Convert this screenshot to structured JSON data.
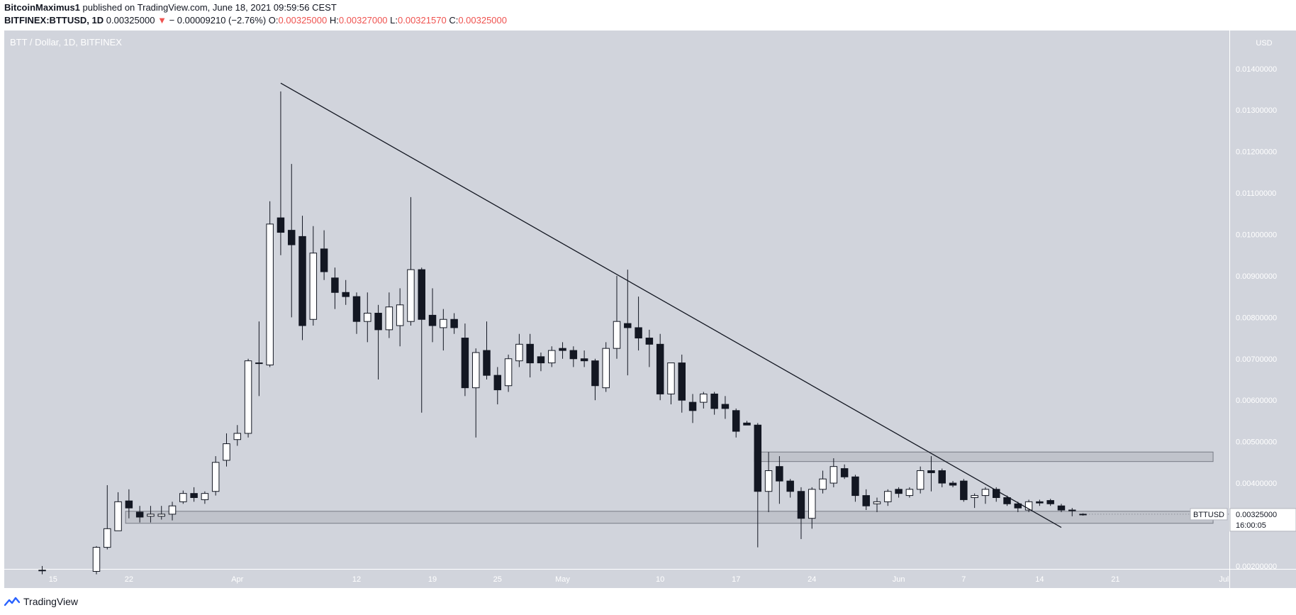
{
  "header": {
    "author": "BitcoinMaximus1",
    "published_text": "published on TradingView.com, June 18, 2021 09:59:56 CEST",
    "symbol": "BITFINEX:BTTUSD, 1D",
    "last": "0.00325000",
    "change": "− 0.00009210 (−2.76%)",
    "arrow": "▼",
    "o_label": "O:",
    "o_val": "0.00325000",
    "h_label": "H:",
    "h_val": "0.00327000",
    "l_label": "L:",
    "l_val": "0.00321570",
    "c_label": "C:",
    "c_val": "0.00325000"
  },
  "footer": {
    "brand": "TradingView",
    "logo_icon": "tradingview-logo-icon"
  },
  "colors": {
    "plot_bg": "#d1d4dc",
    "up_fill": "#ffffff",
    "down_fill": "#131722",
    "wick": "#131722",
    "trendline": "#131722",
    "zone_fill": "rgba(178,181,190,0.55)",
    "zone_stroke": "#787b86",
    "axis_text": "#ffffff",
    "chart_title": "#ffffff"
  },
  "chart_data": {
    "type": "candlestick",
    "title": "BTT / Dollar, 1D, BITFINEX",
    "currency": "USD",
    "price_tag": {
      "label": "BTTUSD",
      "value": "0.00325000",
      "countdown": "16:00:05"
    },
    "ylim": [
      0.00193,
      0.01492
    ],
    "y_ticks": [
      "0.01400000",
      "0.01300000",
      "0.01200000",
      "0.01100000",
      "0.01000000",
      "0.00900000",
      "0.00800000",
      "0.00700000",
      "0.00600000",
      "0.00500000",
      "0.00400000",
      "0.00200000"
    ],
    "y_tick_values": [
      0.014,
      0.013,
      0.012,
      0.011,
      0.01,
      0.009,
      0.008,
      0.007,
      0.006,
      0.005,
      0.004,
      0.002
    ],
    "x_start": "2021-03-11",
    "x_end": "2021-07-02",
    "x_ticks": [
      {
        "label": "15",
        "date": "2021-03-15"
      },
      {
        "label": "22",
        "date": "2021-03-22"
      },
      {
        "label": "Apr",
        "date": "2021-04-01"
      },
      {
        "label": "12",
        "date": "2021-04-12"
      },
      {
        "label": "19",
        "date": "2021-04-19"
      },
      {
        "label": "25",
        "date": "2021-04-25"
      },
      {
        "label": "May",
        "date": "2021-05-01"
      },
      {
        "label": "10",
        "date": "2021-05-10"
      },
      {
        "label": "17",
        "date": "2021-05-17"
      },
      {
        "label": "24",
        "date": "2021-05-24"
      },
      {
        "label": "Jun",
        "date": "2021-06-01"
      },
      {
        "label": "7",
        "date": "2021-06-07"
      },
      {
        "label": "14",
        "date": "2021-06-14"
      },
      {
        "label": "21",
        "date": "2021-06-21"
      },
      {
        "label": "Jul",
        "date": "2021-07-01"
      }
    ],
    "candles": [
      {
        "d": "2021-03-14",
        "o": 0.0019,
        "h": 0.002,
        "l": 0.0018,
        "c": 0.0019
      },
      {
        "d": "2021-03-19",
        "o": 0.00187,
        "h": 0.00248,
        "l": 0.0018,
        "c": 0.00245
      },
      {
        "d": "2021-03-20",
        "o": 0.00245,
        "h": 0.00395,
        "l": 0.0024,
        "c": 0.0029
      },
      {
        "d": "2021-03-21",
        "o": 0.00285,
        "h": 0.00378,
        "l": 0.00285,
        "c": 0.00355
      },
      {
        "d": "2021-03-22",
        "o": 0.00357,
        "h": 0.00385,
        "l": 0.00315,
        "c": 0.0034
      },
      {
        "d": "2021-03-23",
        "o": 0.0033,
        "h": 0.00345,
        "l": 0.00305,
        "c": 0.00318
      },
      {
        "d": "2021-03-24",
        "o": 0.0032,
        "h": 0.00345,
        "l": 0.00305,
        "c": 0.00325
      },
      {
        "d": "2021-03-25",
        "o": 0.0032,
        "h": 0.00345,
        "l": 0.00312,
        "c": 0.00325
      },
      {
        "d": "2021-03-26",
        "o": 0.00325,
        "h": 0.00355,
        "l": 0.0031,
        "c": 0.00345
      },
      {
        "d": "2021-03-27",
        "o": 0.00355,
        "h": 0.00382,
        "l": 0.0035,
        "c": 0.00375
      },
      {
        "d": "2021-03-28",
        "o": 0.00375,
        "h": 0.0039,
        "l": 0.00355,
        "c": 0.00365
      },
      {
        "d": "2021-03-29",
        "o": 0.0036,
        "h": 0.0038,
        "l": 0.0035,
        "c": 0.00375
      },
      {
        "d": "2021-03-30",
        "o": 0.0038,
        "h": 0.00465,
        "l": 0.0037,
        "c": 0.0045
      },
      {
        "d": "2021-03-31",
        "o": 0.00455,
        "h": 0.0052,
        "l": 0.0044,
        "c": 0.00495
      },
      {
        "d": "2021-04-01",
        "o": 0.00505,
        "h": 0.0054,
        "l": 0.0049,
        "c": 0.0052
      },
      {
        "d": "2021-04-02",
        "o": 0.0052,
        "h": 0.007,
        "l": 0.0051,
        "c": 0.00695
      },
      {
        "d": "2021-04-03",
        "o": 0.0069,
        "h": 0.0079,
        "l": 0.0061,
        "c": 0.0069
      },
      {
        "d": "2021-04-04",
        "o": 0.00685,
        "h": 0.0108,
        "l": 0.0068,
        "c": 0.01025
      },
      {
        "d": "2021-04-05",
        "o": 0.0104,
        "h": 0.01345,
        "l": 0.0095,
        "c": 0.01005
      },
      {
        "d": "2021-04-06",
        "o": 0.0101,
        "h": 0.0117,
        "l": 0.008,
        "c": 0.00975
      },
      {
        "d": "2021-04-07",
        "o": 0.00995,
        "h": 0.01045,
        "l": 0.00745,
        "c": 0.0078
      },
      {
        "d": "2021-04-08",
        "o": 0.00795,
        "h": 0.0102,
        "l": 0.0078,
        "c": 0.00955
      },
      {
        "d": "2021-04-09",
        "o": 0.00965,
        "h": 0.0101,
        "l": 0.0089,
        "c": 0.0091
      },
      {
        "d": "2021-04-10",
        "o": 0.00895,
        "h": 0.0092,
        "l": 0.0082,
        "c": 0.0086
      },
      {
        "d": "2021-04-11",
        "o": 0.0086,
        "h": 0.0089,
        "l": 0.0083,
        "c": 0.0085
      },
      {
        "d": "2021-04-12",
        "o": 0.0085,
        "h": 0.0086,
        "l": 0.0076,
        "c": 0.0079
      },
      {
        "d": "2021-04-13",
        "o": 0.0079,
        "h": 0.0086,
        "l": 0.0074,
        "c": 0.0081
      },
      {
        "d": "2021-04-14",
        "o": 0.0081,
        "h": 0.0083,
        "l": 0.0065,
        "c": 0.0077
      },
      {
        "d": "2021-04-15",
        "o": 0.0077,
        "h": 0.0086,
        "l": 0.0075,
        "c": 0.00825
      },
      {
        "d": "2021-04-16",
        "o": 0.0078,
        "h": 0.0087,
        "l": 0.0073,
        "c": 0.0083
      },
      {
        "d": "2021-04-17",
        "o": 0.0079,
        "h": 0.0109,
        "l": 0.0078,
        "c": 0.00915
      },
      {
        "d": "2021-04-18",
        "o": 0.00915,
        "h": 0.0092,
        "l": 0.0057,
        "c": 0.00795
      },
      {
        "d": "2021-04-19",
        "o": 0.00805,
        "h": 0.0087,
        "l": 0.0074,
        "c": 0.0078
      },
      {
        "d": "2021-04-20",
        "o": 0.00775,
        "h": 0.0082,
        "l": 0.0072,
        "c": 0.00795
      },
      {
        "d": "2021-04-21",
        "o": 0.00795,
        "h": 0.0081,
        "l": 0.0076,
        "c": 0.00775
      },
      {
        "d": "2021-04-22",
        "o": 0.0075,
        "h": 0.00785,
        "l": 0.0061,
        "c": 0.0063
      },
      {
        "d": "2021-04-23",
        "o": 0.0063,
        "h": 0.00725,
        "l": 0.0051,
        "c": 0.00715
      },
      {
        "d": "2021-04-24",
        "o": 0.0072,
        "h": 0.0079,
        "l": 0.0065,
        "c": 0.0066
      },
      {
        "d": "2021-04-25",
        "o": 0.0066,
        "h": 0.0068,
        "l": 0.0059,
        "c": 0.00625
      },
      {
        "d": "2021-04-26",
        "o": 0.00635,
        "h": 0.0071,
        "l": 0.0062,
        "c": 0.007
      },
      {
        "d": "2021-04-27",
        "o": 0.00695,
        "h": 0.0076,
        "l": 0.0068,
        "c": 0.00735
      },
      {
        "d": "2021-04-28",
        "o": 0.00735,
        "h": 0.0076,
        "l": 0.00655,
        "c": 0.0069
      },
      {
        "d": "2021-04-29",
        "o": 0.00705,
        "h": 0.00715,
        "l": 0.0067,
        "c": 0.0069
      },
      {
        "d": "2021-04-30",
        "o": 0.0069,
        "h": 0.0073,
        "l": 0.0068,
        "c": 0.0072
      },
      {
        "d": "2021-05-01",
        "o": 0.00725,
        "h": 0.0074,
        "l": 0.007,
        "c": 0.0072
      },
      {
        "d": "2021-05-02",
        "o": 0.0072,
        "h": 0.0073,
        "l": 0.0068,
        "c": 0.007
      },
      {
        "d": "2021-05-03",
        "o": 0.007,
        "h": 0.0072,
        "l": 0.0068,
        "c": 0.00695
      },
      {
        "d": "2021-05-04",
        "o": 0.00695,
        "h": 0.007,
        "l": 0.006,
        "c": 0.00635
      },
      {
        "d": "2021-05-05",
        "o": 0.0063,
        "h": 0.0074,
        "l": 0.0062,
        "c": 0.00725
      },
      {
        "d": "2021-05-06",
        "o": 0.00725,
        "h": 0.009,
        "l": 0.007,
        "c": 0.0079
      },
      {
        "d": "2021-05-07",
        "o": 0.00785,
        "h": 0.00915,
        "l": 0.0066,
        "c": 0.00775
      },
      {
        "d": "2021-05-08",
        "o": 0.00775,
        "h": 0.0085,
        "l": 0.0072,
        "c": 0.0075
      },
      {
        "d": "2021-05-09",
        "o": 0.0075,
        "h": 0.0077,
        "l": 0.0068,
        "c": 0.00735
      },
      {
        "d": "2021-05-10",
        "o": 0.00735,
        "h": 0.0076,
        "l": 0.006,
        "c": 0.00615
      },
      {
        "d": "2021-05-11",
        "o": 0.00615,
        "h": 0.0069,
        "l": 0.0059,
        "c": 0.0069
      },
      {
        "d": "2021-05-12",
        "o": 0.0069,
        "h": 0.0071,
        "l": 0.0057,
        "c": 0.006
      },
      {
        "d": "2021-05-13",
        "o": 0.00595,
        "h": 0.00615,
        "l": 0.00545,
        "c": 0.00575
      },
      {
        "d": "2021-05-14",
        "o": 0.00595,
        "h": 0.0062,
        "l": 0.0058,
        "c": 0.00615
      },
      {
        "d": "2021-05-15",
        "o": 0.00615,
        "h": 0.0062,
        "l": 0.00565,
        "c": 0.0058
      },
      {
        "d": "2021-05-16",
        "o": 0.0059,
        "h": 0.0061,
        "l": 0.00555,
        "c": 0.0058
      },
      {
        "d": "2021-05-17",
        "o": 0.00575,
        "h": 0.0058,
        "l": 0.0051,
        "c": 0.00525
      },
      {
        "d": "2021-05-18",
        "o": 0.00545,
        "h": 0.0055,
        "l": 0.0054,
        "c": 0.0054
      },
      {
        "d": "2021-05-19",
        "o": 0.0054,
        "h": 0.00545,
        "l": 0.00245,
        "c": 0.0038
      },
      {
        "d": "2021-05-20",
        "o": 0.0038,
        "h": 0.00475,
        "l": 0.0033,
        "c": 0.0043
      },
      {
        "d": "2021-05-21",
        "o": 0.0044,
        "h": 0.00465,
        "l": 0.0035,
        "c": 0.00405
      },
      {
        "d": "2021-05-22",
        "o": 0.00405,
        "h": 0.0041,
        "l": 0.00365,
        "c": 0.0038
      },
      {
        "d": "2021-05-23",
        "o": 0.0038,
        "h": 0.0039,
        "l": 0.00265,
        "c": 0.00315
      },
      {
        "d": "2021-05-24",
        "o": 0.00315,
        "h": 0.0039,
        "l": 0.0029,
        "c": 0.00385
      },
      {
        "d": "2021-05-25",
        "o": 0.00385,
        "h": 0.0043,
        "l": 0.00375,
        "c": 0.0041
      },
      {
        "d": "2021-05-26",
        "o": 0.004,
        "h": 0.0046,
        "l": 0.0039,
        "c": 0.0044
      },
      {
        "d": "2021-05-27",
        "o": 0.00435,
        "h": 0.00445,
        "l": 0.0041,
        "c": 0.00415
      },
      {
        "d": "2021-05-28",
        "o": 0.00415,
        "h": 0.0042,
        "l": 0.00355,
        "c": 0.0037
      },
      {
        "d": "2021-05-29",
        "o": 0.0037,
        "h": 0.00385,
        "l": 0.00335,
        "c": 0.00345
      },
      {
        "d": "2021-05-30",
        "o": 0.0035,
        "h": 0.00365,
        "l": 0.0033,
        "c": 0.00355
      },
      {
        "d": "2021-05-31",
        "o": 0.00355,
        "h": 0.00385,
        "l": 0.00345,
        "c": 0.0038
      },
      {
        "d": "2021-06-01",
        "o": 0.00385,
        "h": 0.0039,
        "l": 0.00365,
        "c": 0.00375
      },
      {
        "d": "2021-06-02",
        "o": 0.0037,
        "h": 0.0039,
        "l": 0.00365,
        "c": 0.00385
      },
      {
        "d": "2021-06-03",
        "o": 0.00385,
        "h": 0.0044,
        "l": 0.00375,
        "c": 0.0043
      },
      {
        "d": "2021-06-04",
        "o": 0.0043,
        "h": 0.00465,
        "l": 0.0038,
        "c": 0.00425
      },
      {
        "d": "2021-06-05",
        "o": 0.0043,
        "h": 0.00435,
        "l": 0.0039,
        "c": 0.004
      },
      {
        "d": "2021-06-06",
        "o": 0.004,
        "h": 0.00405,
        "l": 0.0039,
        "c": 0.00395
      },
      {
        "d": "2021-06-07",
        "o": 0.00405,
        "h": 0.0041,
        "l": 0.00355,
        "c": 0.0036
      },
      {
        "d": "2021-06-08",
        "o": 0.00365,
        "h": 0.00375,
        "l": 0.0034,
        "c": 0.0037
      },
      {
        "d": "2021-06-09",
        "o": 0.0037,
        "h": 0.0039,
        "l": 0.0035,
        "c": 0.00385
      },
      {
        "d": "2021-06-10",
        "o": 0.00385,
        "h": 0.0039,
        "l": 0.00355,
        "c": 0.00365
      },
      {
        "d": "2021-06-11",
        "o": 0.00365,
        "h": 0.0037,
        "l": 0.00345,
        "c": 0.0035
      },
      {
        "d": "2021-06-12",
        "o": 0.0035,
        "h": 0.00355,
        "l": 0.0033,
        "c": 0.0034
      },
      {
        "d": "2021-06-13",
        "o": 0.00335,
        "h": 0.0036,
        "l": 0.0033,
        "c": 0.00355
      },
      {
        "d": "2021-06-14",
        "o": 0.00355,
        "h": 0.0036,
        "l": 0.00345,
        "c": 0.00352
      },
      {
        "d": "2021-06-15",
        "o": 0.00358,
        "h": 0.00362,
        "l": 0.00345,
        "c": 0.0035
      },
      {
        "d": "2021-06-16",
        "o": 0.00345,
        "h": 0.0035,
        "l": 0.0033,
        "c": 0.00335
      },
      {
        "d": "2021-06-17",
        "o": 0.00335,
        "h": 0.0034,
        "l": 0.0032,
        "c": 0.00334
      },
      {
        "d": "2021-06-18",
        "o": 0.00325,
        "h": 0.00327,
        "l": 0.0032157,
        "c": 0.00325
      }
    ],
    "trendline": [
      {
        "d": "2021-04-05",
        "y": 0.01365
      },
      {
        "d": "2021-06-16",
        "y": 0.00293
      }
    ],
    "zones": [
      {
        "d1": "2021-05-19",
        "d2": "2021-06-30",
        "y1": 0.00475,
        "y2": 0.00452
      },
      {
        "d1": "2021-03-22",
        "d2": "2021-06-30",
        "y1": 0.00332,
        "y2": 0.00303
      }
    ]
  }
}
